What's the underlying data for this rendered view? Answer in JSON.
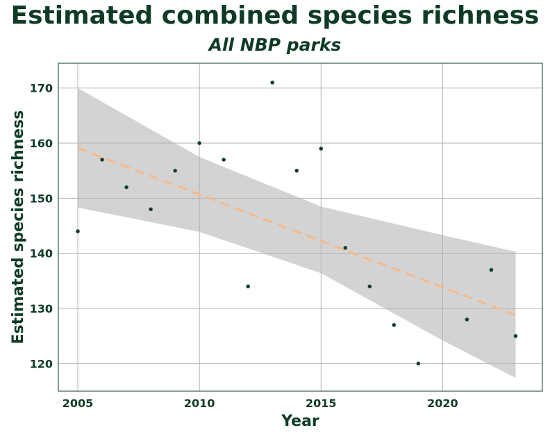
{
  "chart_data": {
    "type": "scatter",
    "title": "Estimated combined species richness",
    "subtitle": "All NBP parks",
    "xlabel": "Year",
    "ylabel": "Estimated species richness",
    "xlim": [
      2004.2,
      2024.1
    ],
    "ylim": [
      115,
      174.5
    ],
    "xticks": [
      2005,
      2010,
      2015,
      2020
    ],
    "yticks": [
      120,
      130,
      140,
      150,
      160,
      170
    ],
    "grid": true,
    "points": [
      {
        "x": 2005,
        "y": 144
      },
      {
        "x": 2006,
        "y": 157
      },
      {
        "x": 2007,
        "y": 152
      },
      {
        "x": 2008,
        "y": 148
      },
      {
        "x": 2009,
        "y": 155
      },
      {
        "x": 2010,
        "y": 160
      },
      {
        "x": 2011,
        "y": 157
      },
      {
        "x": 2012,
        "y": 134
      },
      {
        "x": 2013,
        "y": 171
      },
      {
        "x": 2014,
        "y": 155
      },
      {
        "x": 2015,
        "y": 159
      },
      {
        "x": 2016,
        "y": 141
      },
      {
        "x": 2017,
        "y": 134
      },
      {
        "x": 2018,
        "y": 127
      },
      {
        "x": 2019,
        "y": 120
      },
      {
        "x": 2021,
        "y": 128
      },
      {
        "x": 2022,
        "y": 137
      },
      {
        "x": 2023,
        "y": 125
      }
    ],
    "trend": {
      "x": [
        2005,
        2023
      ],
      "y": [
        159.1,
        128.8
      ],
      "style": "dashed",
      "color": "#f6b98a"
    },
    "confidence_band": {
      "x": [
        2005,
        2010,
        2015,
        2020,
        2023
      ],
      "upper": [
        170,
        157.5,
        148.5,
        143.3,
        140.3
      ],
      "lower": [
        148.3,
        143.9,
        136.4,
        124.2,
        117.4
      ],
      "color": "#d3d3d3"
    },
    "colors": {
      "point": "#0f3b26",
      "grid": "#b3b3b3",
      "text": "#0f3b26"
    }
  }
}
